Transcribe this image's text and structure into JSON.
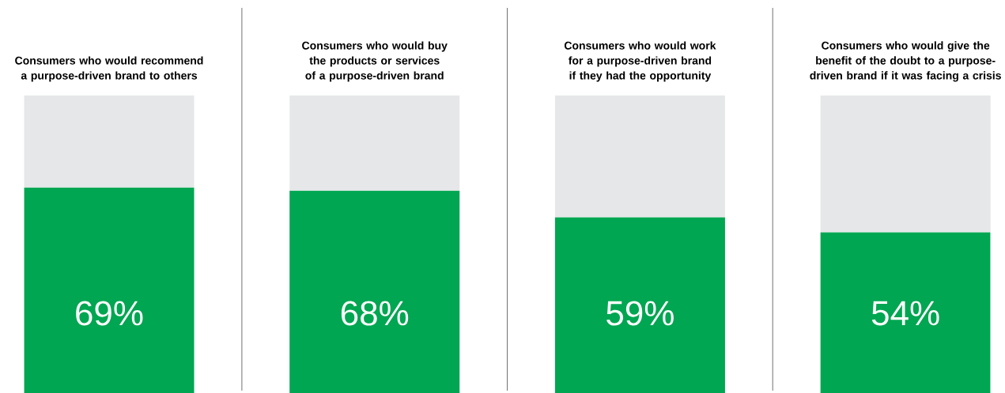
{
  "chart_data": {
    "type": "bar",
    "stacked": true,
    "tick_labels": "x",
    "categories": [
      "Consumers who would recommend a purpose-driven brand to others",
      "Consumers who would buy the products or services of a purpose-driven brand",
      "Consumers who would work for a purpose-driven brand if they had the opportunity",
      "Consumers who would give the benefit of the doubt to a purpose-driven brand if it was facing a crisis"
    ],
    "ylim": [
      0,
      100
    ],
    "series": [
      {
        "color": "#00a651",
        "values": [
          69,
          68,
          59,
          54
        ],
        "value_labels": [
          "69%",
          "68%",
          "59%",
          "54%"
        ]
      },
      {
        "color": "#e6e7e8",
        "values": [
          31,
          32,
          41,
          46
        ]
      }
    ]
  }
}
